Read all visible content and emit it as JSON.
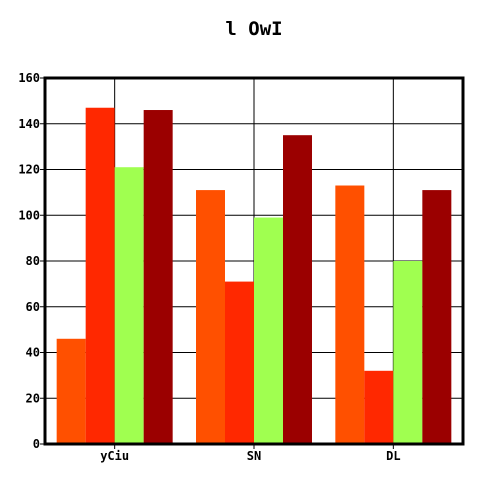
{
  "chart_data": {
    "type": "bar",
    "title": "l OwI",
    "xlabel": "",
    "ylabel": "",
    "categories": [
      "yCiu",
      "SN",
      "DL"
    ],
    "series": [
      {
        "values": [
          46,
          111,
          113
        ],
        "color": "#ff5000"
      },
      {
        "values": [
          147,
          71,
          32
        ],
        "color": "#ff2800"
      },
      {
        "values": [
          121,
          99,
          80
        ],
        "color": "#a0ff50"
      },
      {
        "values": [
          146,
          135,
          111
        ],
        "color": "#9b0000"
      }
    ],
    "ylim": [
      0,
      160
    ],
    "yticks": [
      0,
      20,
      40,
      60,
      80,
      100,
      120,
      140,
      160
    ],
    "grid": true,
    "legend": "none"
  }
}
